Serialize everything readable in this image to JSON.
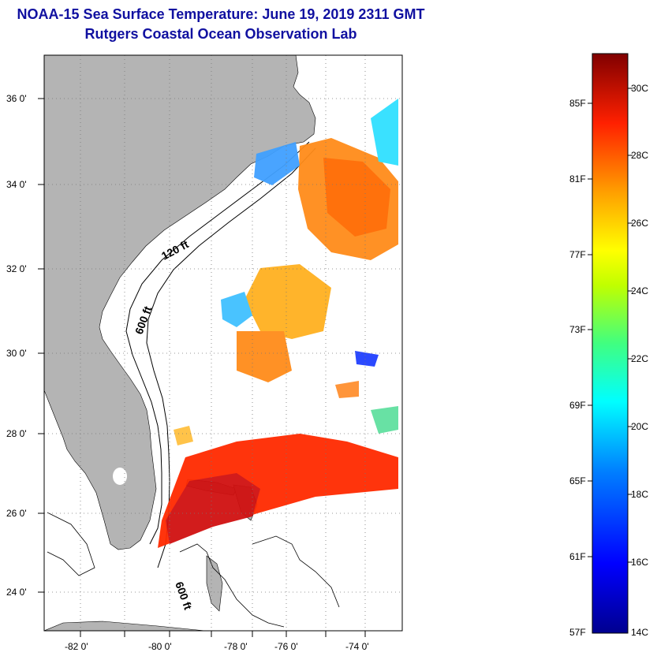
{
  "title": {
    "line1": "NOAA-15 Sea Surface Temperature:  June 19, 2019 2311 GMT",
    "line2": "Rutgers Coastal Ocean Observation Lab"
  },
  "map": {
    "lat_labels": [
      "36 0'",
      "34 0'",
      "32 0'",
      "30 0'",
      "28 0'",
      "26 0'",
      "24 0'"
    ],
    "lon_labels": [
      "-82 0'",
      "-80 0'",
      "-78 0'",
      "-76 0'",
      "-74 0'"
    ],
    "contour_labels": [
      "120 ft",
      "600 ft",
      "600 ft"
    ],
    "land_color": "#b4b4b4"
  },
  "colorbar": {
    "fahrenheit_labels": [
      "85F",
      "81F",
      "77F",
      "73F",
      "69F",
      "65F",
      "61F",
      "57F"
    ],
    "celsius_labels": [
      "30C",
      "28C",
      "26C",
      "24C",
      "22C",
      "20C",
      "18C",
      "16C",
      "14C"
    ],
    "range_c": [
      14,
      31
    ]
  }
}
